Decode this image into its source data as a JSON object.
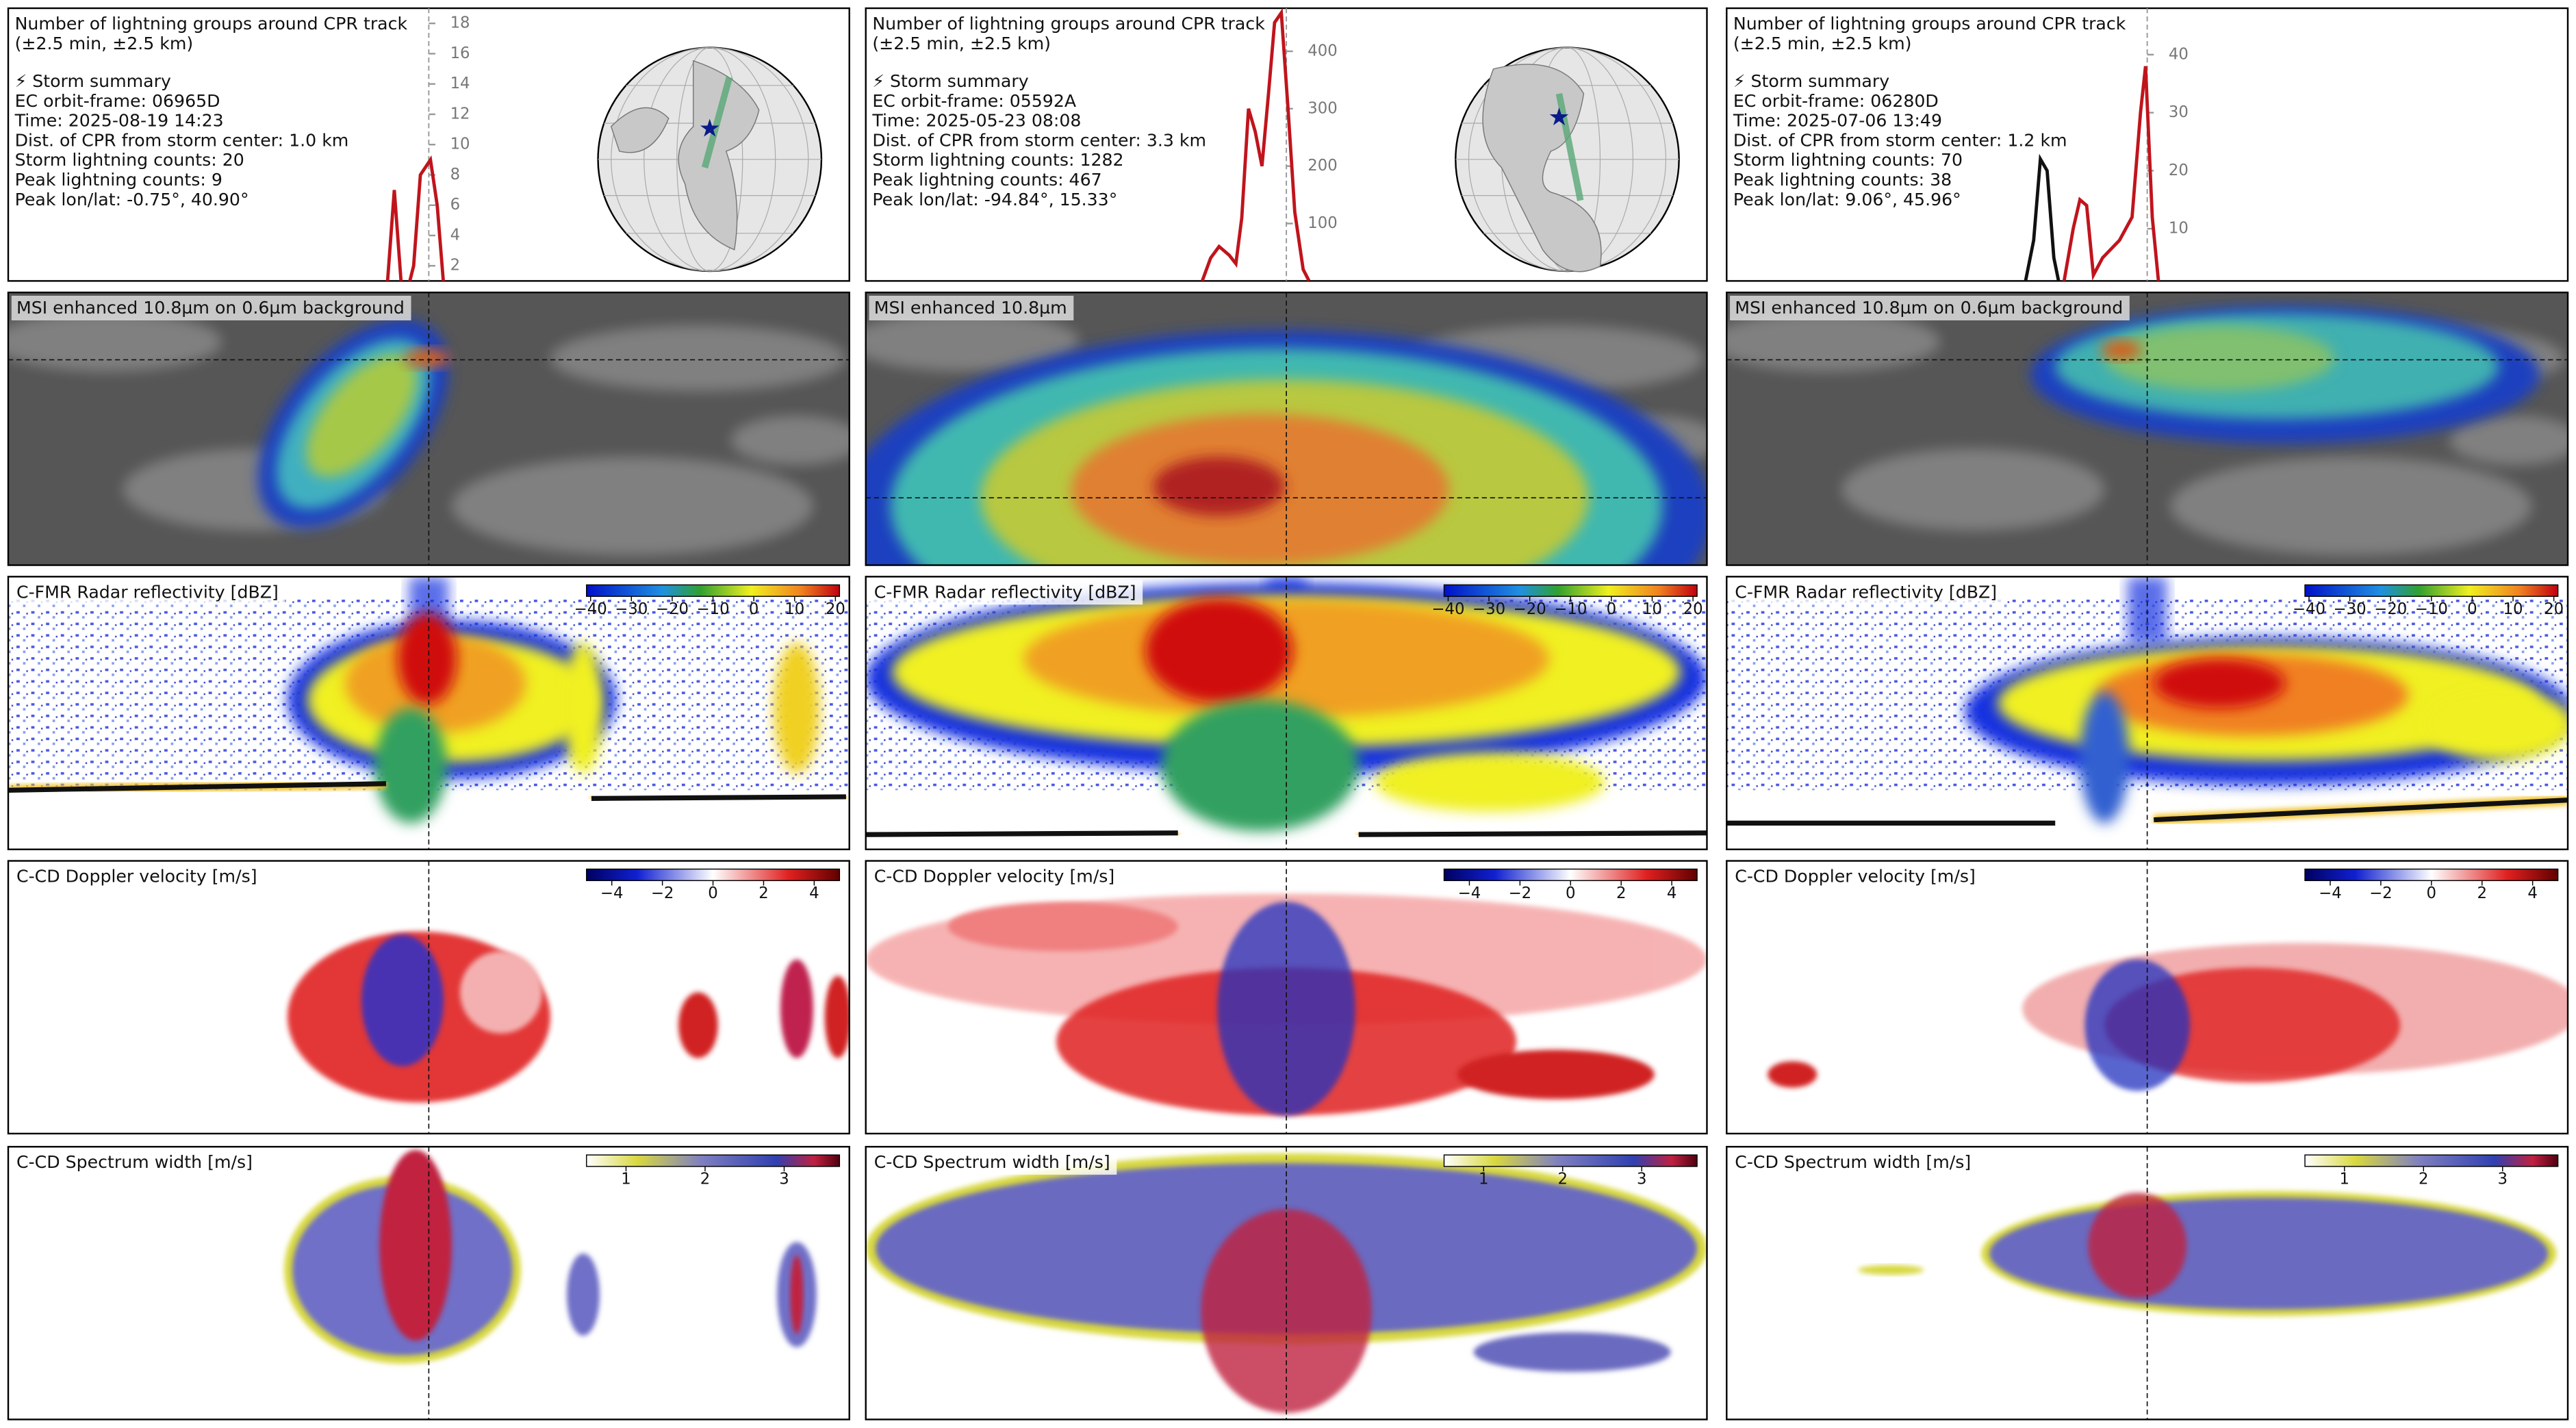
{
  "chart_data": [
    {
      "type": "line",
      "title": "Number of lightning groups around CPR track",
      "subtitle": "(±2.5 min, ±2.5 km)",
      "series": [
        {
          "color": "#c0141c",
          "x": [
            -6.1,
            -4.9,
            -4.1,
            -3.3,
            -2.7,
            -1.8,
            -1.0,
            0.2,
            1.0,
            1.8,
            2.5
          ],
          "values": [
            0,
            1,
            7,
            1,
            0,
            2,
            8,
            9,
            6,
            0.5,
            0
          ]
        }
      ],
      "xlim": [
        -50,
        50
      ],
      "ylim": [
        1,
        19
      ],
      "yticks": [
        2,
        4,
        6,
        8,
        10,
        12,
        14,
        16,
        18
      ],
      "vline": 0
    },
    {
      "type": "line",
      "title": "Number of lightning groups around CPR track",
      "subtitle": "(±2.5 min, ±2.5 km)",
      "series": [
        {
          "color": "#c0141c",
          "x": [
            -10,
            -9,
            -8,
            -6.8,
            -6,
            -5.3,
            -4.5,
            -3.7,
            -2.9,
            -2.1,
            -1.4,
            -0.6,
            0.2,
            1,
            2,
            2.7
          ],
          "values": [
            0,
            40,
            60,
            45,
            30,
            110,
            300,
            260,
            200,
            330,
            450,
            467,
            300,
            120,
            20,
            0
          ]
        }
      ],
      "xlim": [
        -50,
        50
      ],
      "ylim": [
        0,
        475
      ],
      "yticks": [
        100,
        200,
        300,
        400
      ],
      "vline": 0
    },
    {
      "type": "line",
      "title": "Number of lightning groups around CPR track",
      "subtitle": "(±2.5 min, ±2.5 km)",
      "series": [
        {
          "color": "#111111",
          "x": [
            -14.6,
            -13.5,
            -12.7,
            -11.9,
            -11.1,
            -10.4
          ],
          "values": [
            0,
            8,
            22,
            20,
            5,
            0
          ]
        },
        {
          "color": "#c0141c",
          "x": [
            -10,
            -8.8,
            -8,
            -7.2,
            -6.4,
            -5.3,
            -3.3,
            -1.8,
            -0.8,
            -0.2,
            0.6,
            1.4
          ],
          "values": [
            0,
            10,
            15,
            14,
            2,
            5,
            8,
            12,
            30,
            38,
            12,
            0
          ]
        }
      ],
      "xlim": [
        -50,
        50
      ],
      "ylim": [
        1,
        48
      ],
      "yticks": [
        10,
        20,
        30,
        40
      ],
      "vline": 0
    }
  ],
  "panels": [
    {
      "summary": [
        "⚡ Storm summary",
        "EC orbit-frame: 06965D",
        "Time: 2025-08-19 14:23",
        "Dist. of CPR from storm center: 1.0 km",
        "Storm lightning counts: 20",
        "Peak lightning counts: 9",
        "Peak lon/lat: -0.75°, 40.90°"
      ],
      "msi_label": "MSI enhanced 10.8µm on 0.6µm background",
      "radar": {
        "label": "C-FMR Radar reflectivity [dBZ]",
        "lim": [
          -41,
          21
        ],
        "ticks": [
          {
            "value": -40,
            "label": "−40"
          },
          {
            "value": -30,
            "label": "−30"
          },
          {
            "value": -20,
            "label": "−20"
          },
          {
            "value": -10,
            "label": "−10"
          },
          0,
          10,
          20
        ]
      },
      "doppler": {
        "label": "C-CD Doppler velocity [m/s]",
        "lim": [
          -5,
          5
        ],
        "ticks": [
          {
            "value": -4,
            "label": "−4"
          },
          {
            "value": -2,
            "label": "−2"
          },
          0,
          2,
          4
        ]
      },
      "width": {
        "label": "C-CD Spectrum width [m/s]",
        "lim": [
          0.5,
          3.7
        ],
        "ticks": [
          1,
          2,
          3
        ]
      }
    },
    {
      "summary": [
        "⚡ Storm summary",
        "EC orbit-frame: 05592A",
        "Time: 2025-05-23 08:08",
        "Dist. of CPR from storm center: 3.3 km",
        "Storm lightning counts: 1282",
        "Peak lightning counts: 467",
        "Peak lon/lat: -94.84°, 15.33°"
      ],
      "msi_label": "MSI enhanced 10.8µm",
      "radar": {
        "label": "C-FMR Radar reflectivity [dBZ]",
        "lim": [
          -41,
          21
        ],
        "ticks": [
          {
            "value": -40,
            "label": "−40"
          },
          {
            "value": -30,
            "label": "−30"
          },
          {
            "value": -20,
            "label": "−20"
          },
          {
            "value": -10,
            "label": "−10"
          },
          0,
          10,
          20
        ]
      },
      "doppler": {
        "label": "C-CD Doppler velocity [m/s]",
        "lim": [
          -5,
          5
        ],
        "ticks": [
          {
            "value": -4,
            "label": "−4"
          },
          {
            "value": -2,
            "label": "−2"
          },
          0,
          2,
          4
        ]
      },
      "width": {
        "label": "C-CD Spectrum width [m/s]",
        "lim": [
          0.5,
          3.7
        ],
        "ticks": [
          1,
          2,
          3
        ]
      }
    },
    {
      "summary": [
        "⚡ Storm summary",
        "EC orbit-frame: 06280D",
        "Time: 2025-07-06 13:49",
        "Dist. of CPR from storm center: 1.2 km",
        "Storm lightning counts: 70",
        "Peak lightning counts: 38",
        "Peak lon/lat: 9.06°, 45.96°"
      ],
      "msi_label": "MSI enhanced 10.8µm on 0.6µm background",
      "radar": {
        "label": "C-FMR Radar reflectivity [dBZ]",
        "lim": [
          -41,
          21
        ],
        "ticks": [
          {
            "value": -40,
            "label": "−40"
          },
          {
            "value": -30,
            "label": "−30"
          },
          {
            "value": -20,
            "label": "−20"
          },
          {
            "value": -10,
            "label": "−10"
          },
          0,
          10,
          20
        ]
      },
      "doppler": {
        "label": "C-CD Doppler velocity [m/s]",
        "lim": [
          -5,
          5
        ],
        "ticks": [
          {
            "value": -4,
            "label": "−4"
          },
          {
            "value": -2,
            "label": "−2"
          },
          0,
          2,
          4
        ]
      },
      "width": {
        "label": "C-CD Spectrum width [m/s]",
        "lim": [
          0.5,
          3.7
        ],
        "ticks": [
          1,
          2,
          3
        ]
      }
    }
  ]
}
